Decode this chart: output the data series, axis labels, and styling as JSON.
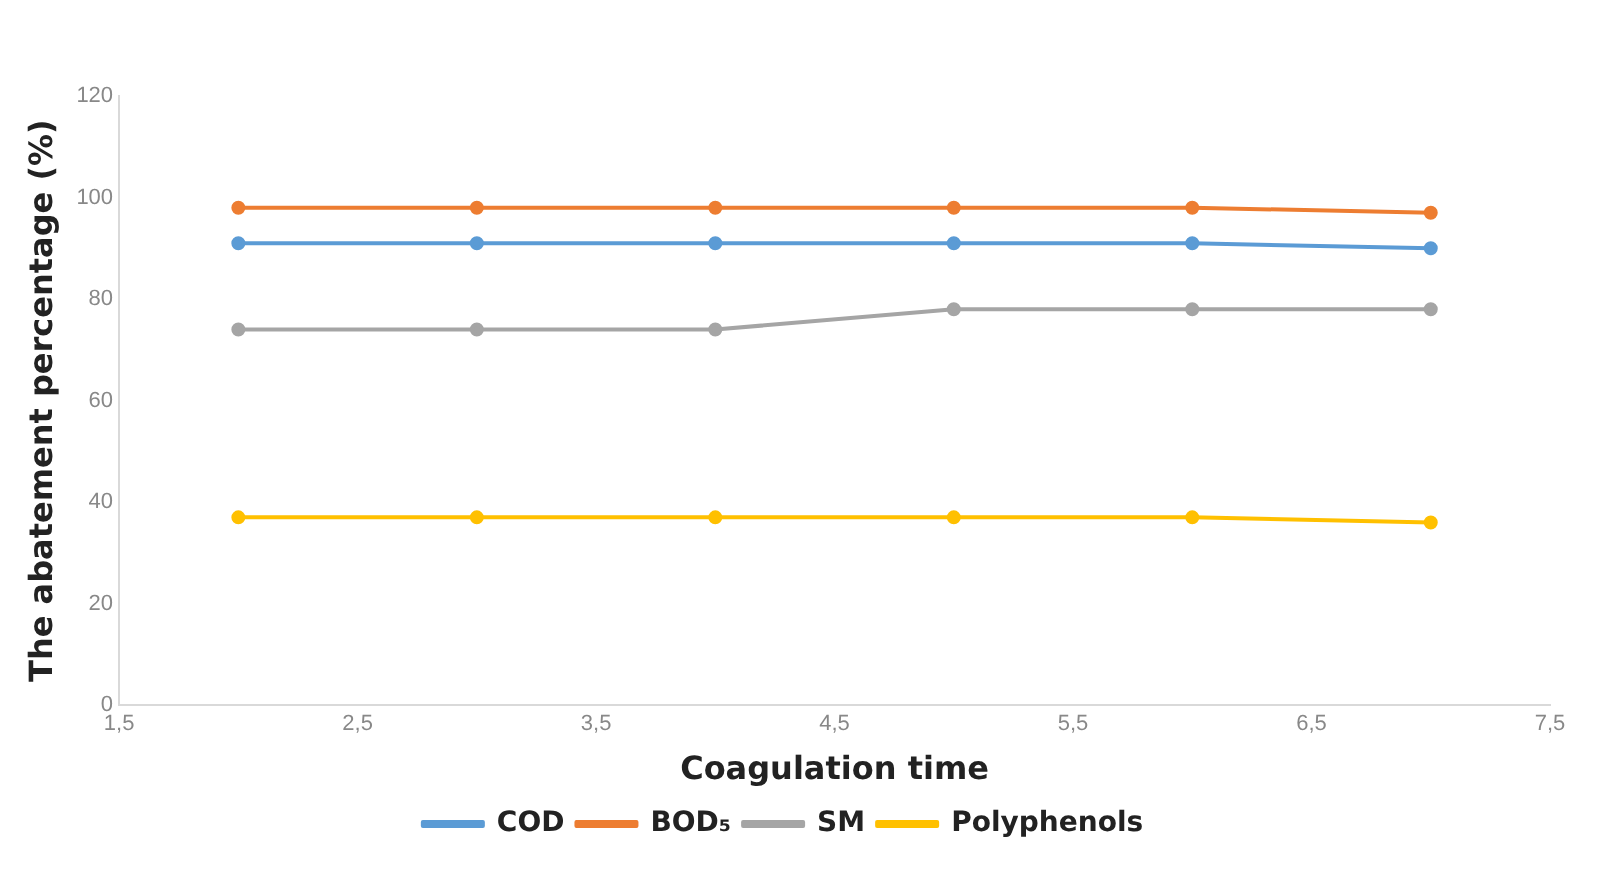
{
  "chart_data": {
    "type": "line",
    "xlabel": "Coagulation time",
    "ylabel": "The abatement percentage (%)",
    "x": [
      2,
      3,
      4,
      5,
      6,
      7
    ],
    "series": [
      {
        "name": "COD",
        "color": "#5b9bd5",
        "values": [
          91,
          91,
          91,
          91,
          91,
          90
        ]
      },
      {
        "name": "BOD₅",
        "color": "#ed7d31",
        "values": [
          98,
          98,
          98,
          98,
          98,
          97
        ]
      },
      {
        "name": "SM",
        "color": "#a5a5a5",
        "values": [
          74,
          74,
          74,
          78,
          78,
          78
        ]
      },
      {
        "name": "Polyphenols",
        "color": "#ffc000",
        "values": [
          37,
          37,
          37,
          37,
          37,
          36
        ]
      }
    ],
    "xlim": [
      1.5,
      7.5
    ],
    "xticks": [
      {
        "value": 1.5,
        "label": "1,5"
      },
      {
        "value": 2.5,
        "label": "2,5"
      },
      {
        "value": 3.5,
        "label": "3,5"
      },
      {
        "value": 4.5,
        "label": "4,5"
      },
      {
        "value": 5.5,
        "label": "5,5"
      },
      {
        "value": 6.5,
        "label": "6,5"
      },
      {
        "value": 7.5,
        "label": "7,5"
      }
    ],
    "ylim": [
      0,
      120
    ],
    "yticks": [
      0,
      20,
      40,
      60,
      80,
      100,
      120
    ],
    "grid": false,
    "legend": "bottom",
    "marker": "circle",
    "line_style": "solid"
  }
}
